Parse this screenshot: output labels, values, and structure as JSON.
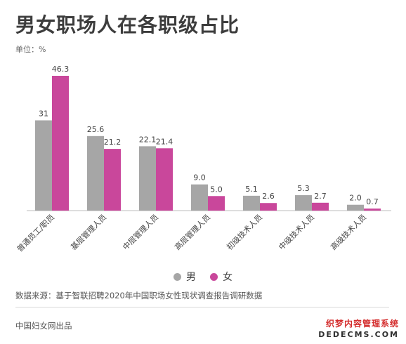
{
  "header": {
    "title": "男女职场人在各职级占比",
    "unit": "单位：%"
  },
  "chart_data": {
    "type": "bar",
    "title": "男女职场人在各职级占比",
    "ylabel": "单位：%",
    "categories": [
      "普通员工/职员",
      "基层管理人员",
      "中层管理人员",
      "高层管理人员",
      "初级技术人员",
      "中级技术人员",
      "高级技术人员"
    ],
    "series": [
      {
        "name": "男",
        "color": "#a6a6a6",
        "values": [
          31,
          25.6,
          22.1,
          9.0,
          5.1,
          5.3,
          2.0
        ],
        "labels": [
          "31",
          "25.6",
          "22.1",
          "9.0",
          "5.1",
          "5.3",
          "2.0"
        ]
      },
      {
        "name": "女",
        "color": "#c9479b",
        "values": [
          46.3,
          21.2,
          21.4,
          5.0,
          2.6,
          2.7,
          0.7
        ],
        "labels": [
          "46.3",
          "21.2",
          "21.4",
          "5.0",
          "2.6",
          "2.7",
          "0.7"
        ]
      }
    ],
    "ylim": [
      0,
      46.3
    ],
    "grid": false,
    "legend": "bottom-center"
  },
  "legend": {
    "items": [
      {
        "label": "男",
        "color": "#a6a6a6"
      },
      {
        "label": "女",
        "color": "#c9479b"
      }
    ]
  },
  "source": "数据来源：基于智联招聘2020年中国职场女性现状调查报告调研数据",
  "footer": "中国妇女网出品",
  "watermark": {
    "line1": "织梦内容管理系统",
    "line2": "DEDECMS.COM"
  }
}
